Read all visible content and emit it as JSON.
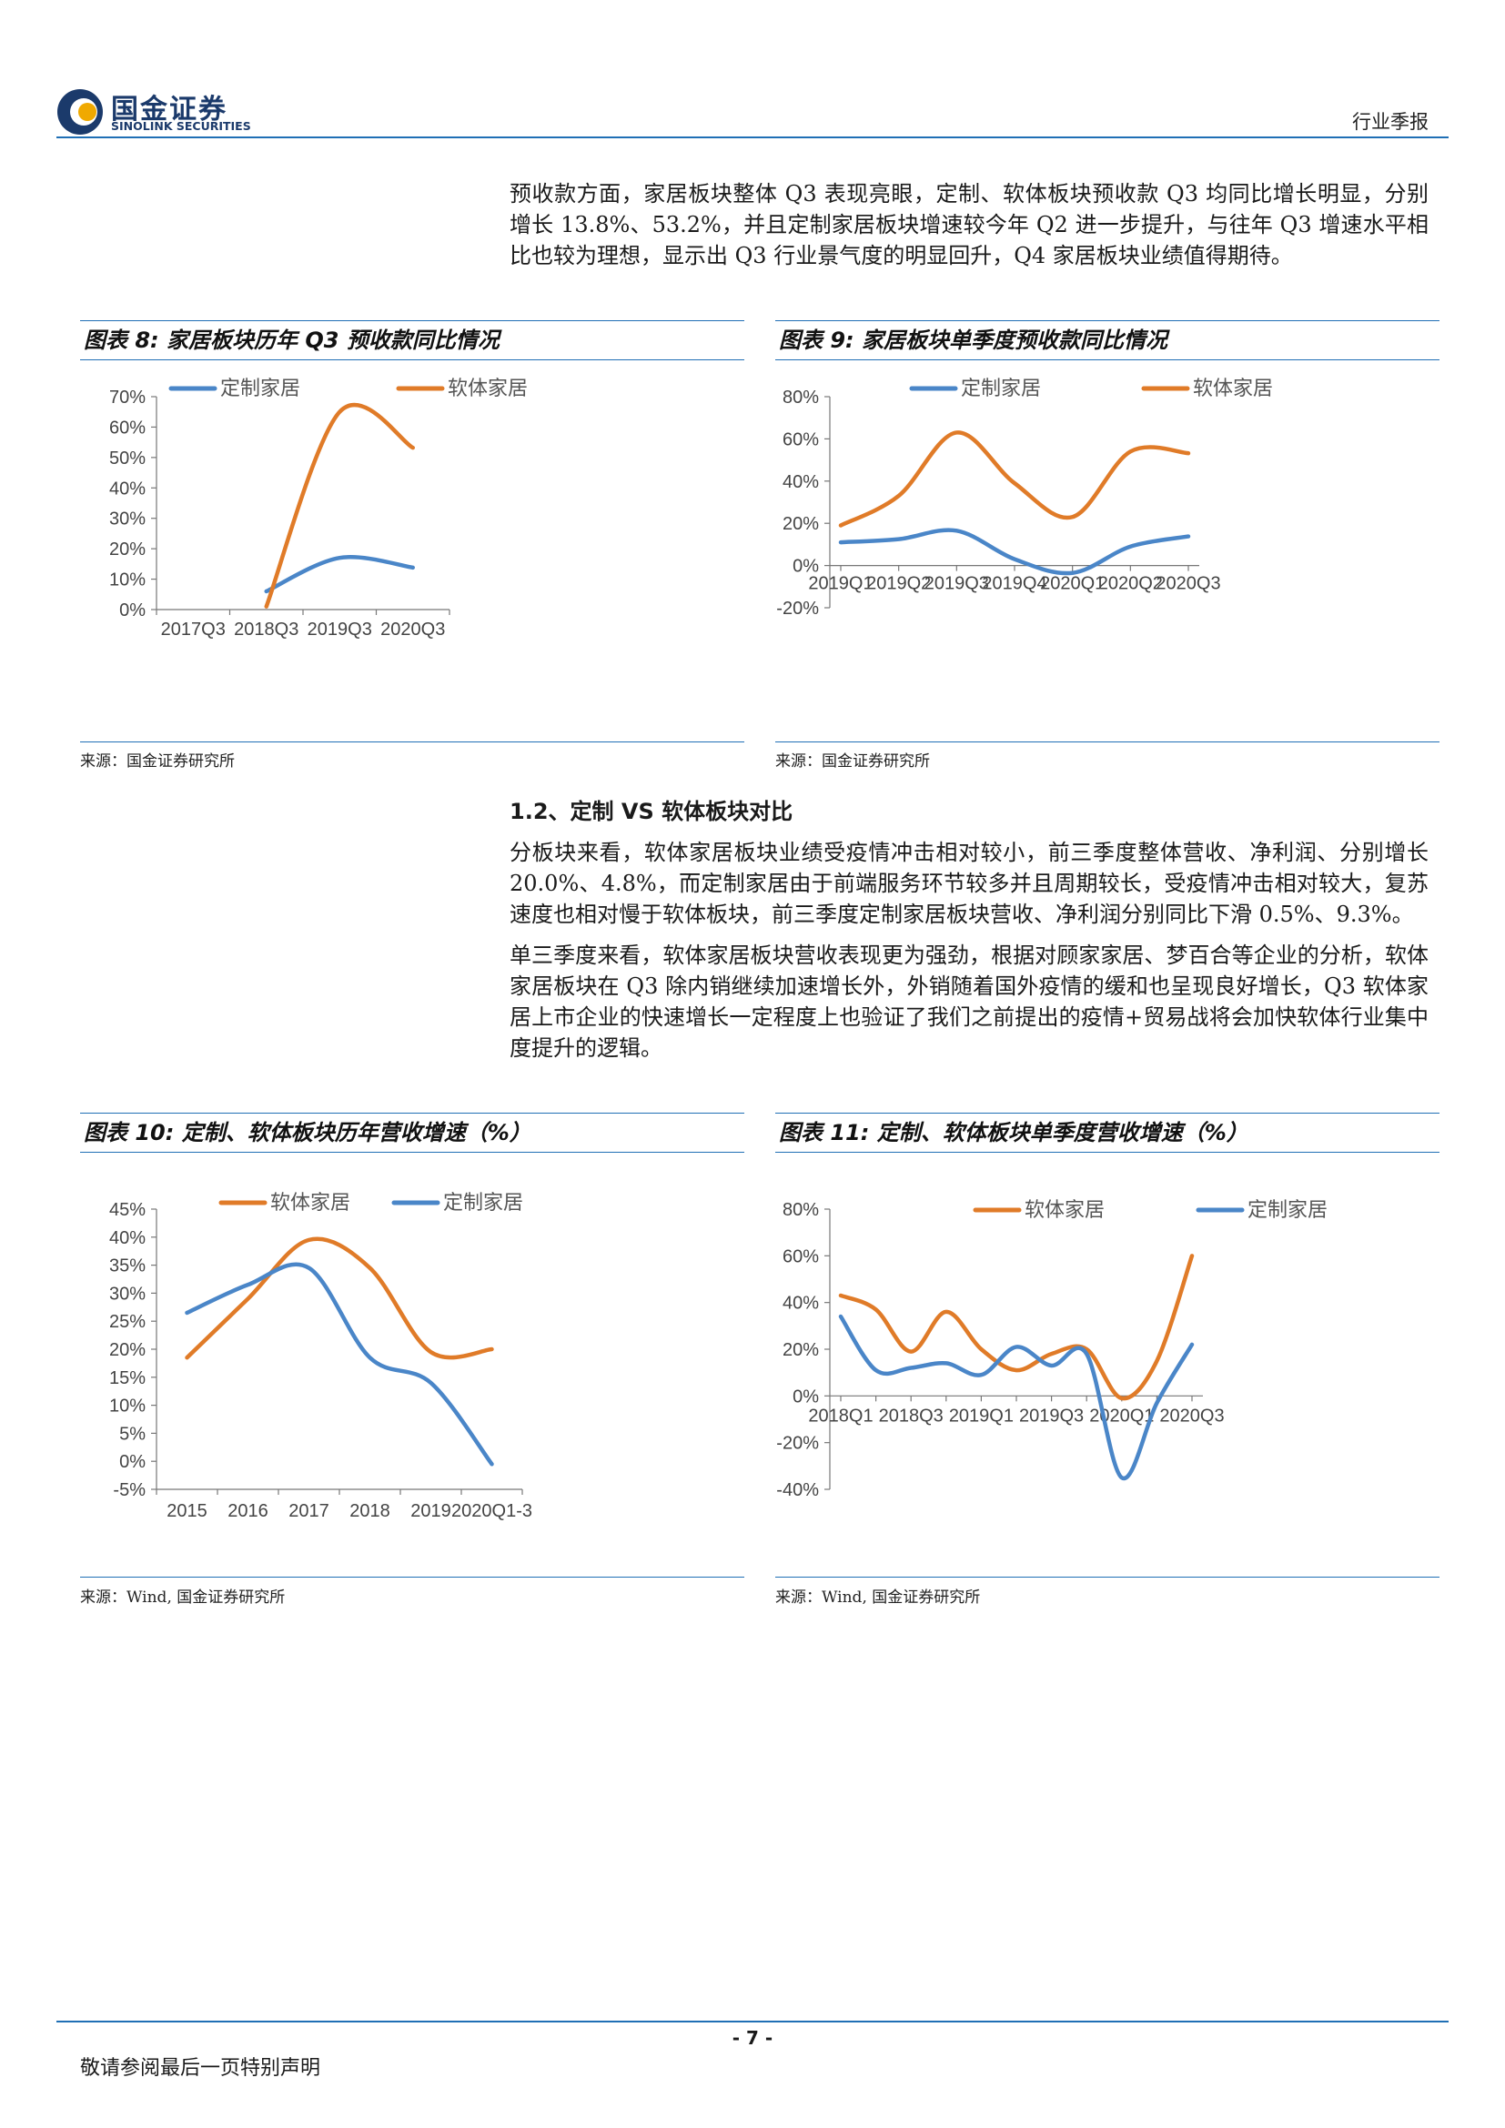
{
  "header": {
    "logo_cn": "国金证券",
    "logo_en": "SINOLINK SECURITIES",
    "report_type": "行业季报"
  },
  "paragraphs": {
    "p1": "预收款方面，家居板块整体 Q3 表现亮眼，定制、软体板块预收款 Q3 均同比增长明显，分别增长 13.8%、53.2%，并且定制家居板块增速较今年 Q2 进一步提升，与往年 Q3 增速水平相比也较为理想，显示出 Q3 行业景气度的明显回升，Q4 家居板块业绩值得期待。",
    "section_title": "1.2、定制 VS 软体板块对比",
    "p2": "分板块来看，软体家居板块业绩受疫情冲击相对较小，前三季度整体营收、净利润、分别增长 20.0%、4.8%，而定制家居由于前端服务环节较多并且周期较长，受疫情冲击相对较大，复苏速度也相对慢于软体板块，前三季度定制家居板块营收、净利润分别同比下滑 0.5%、9.3%。",
    "p3": "单三季度来看，软体家居板块营收表现更为强劲，根据对顾家家居、梦百合等企业的分析，软体家居板块在 Q3 除内销继续加速增长外，外销随着国外疫情的缓和也呈现良好增长，Q3 软体家居上市企业的快速增长一定程度上也验证了我们之前提出的疫情+贸易战将会加快软体行业集中度提升的逻辑。"
  },
  "figures": {
    "fig8": {
      "title": "图表 8:  家居板块历年 Q3 预收款同比情况",
      "source": "来源：国金证券研究所"
    },
    "fig9": {
      "title": "图表 9:  家居板块单季度预收款同比情况",
      "source": "来源：国金证券研究所"
    },
    "fig10": {
      "title": "图表 10:  定制、软体板块历年营收增速（%）",
      "source": "来源：Wind, 国金证券研究所"
    },
    "fig11": {
      "title": "图表 11:  定制、软体板块单季度营收增速（%）",
      "source": "来源：Wind, 国金证券研究所"
    }
  },
  "footer": {
    "page_number": "- 7 -",
    "disclaimer": "敬请参阅最后一页特别声明"
  },
  "colors": {
    "blue_series": "#4a86c8",
    "orange_series": "#e07b28",
    "rule": "#1f6fb5"
  },
  "chart_data": [
    {
      "id": "fig8",
      "type": "line",
      "categories": [
        "2017Q3",
        "2018Q3",
        "2019Q3",
        "2020Q3"
      ],
      "series": [
        {
          "name": "定制家居",
          "color": "#4a86c8",
          "values": [
            null,
            6,
            17,
            13.8
          ]
        },
        {
          "name": "软体家居",
          "color": "#e07b28",
          "values": [
            null,
            1,
            65,
            53.2
          ]
        }
      ],
      "yticks": [
        "0%",
        "10%",
        "20%",
        "30%",
        "40%",
        "50%",
        "60%",
        "70%"
      ],
      "ylim": [
        0,
        70
      ],
      "legend": "top"
    },
    {
      "id": "fig9",
      "type": "line",
      "categories": [
        "2019Q1",
        "2019Q2",
        "2019Q3",
        "2019Q4",
        "2020Q1",
        "2020Q2",
        "2020Q3"
      ],
      "series": [
        {
          "name": "定制家居",
          "color": "#4a86c8",
          "values": [
            11,
            12.5,
            16.5,
            3,
            -3.5,
            9,
            13.8
          ]
        },
        {
          "name": "软体家居",
          "color": "#e07b28",
          "values": [
            19,
            33,
            63,
            39,
            23,
            54,
            53.2
          ]
        }
      ],
      "yticks": [
        "-20%",
        "0%",
        "20%",
        "40%",
        "60%",
        "80%"
      ],
      "ylim": [
        -20,
        80
      ],
      "legend": "top"
    },
    {
      "id": "fig10",
      "type": "line",
      "categories": [
        "2015",
        "2016",
        "2017",
        "2018",
        "2019",
        "2020Q1-3"
      ],
      "series": [
        {
          "name": "软体家居",
          "color": "#e07b28",
          "values": [
            18.5,
            29,
            39.5,
            34.5,
            19.5,
            20.0
          ]
        },
        {
          "name": "定制家居",
          "color": "#4a86c8",
          "values": [
            26.5,
            31.5,
            34.5,
            18.5,
            14,
            -0.5
          ]
        }
      ],
      "yticks": [
        "-5%",
        "0%",
        "5%",
        "10%",
        "15%",
        "20%",
        "25%",
        "30%",
        "35%",
        "40%",
        "45%"
      ],
      "ylim": [
        -5,
        45
      ],
      "legend": "top"
    },
    {
      "id": "fig11",
      "type": "line",
      "categories": [
        "2018Q1",
        "2018Q2",
        "2018Q3",
        "2018Q4",
        "2019Q1",
        "2019Q2",
        "2019Q3",
        "2019Q4",
        "2020Q1",
        "2020Q2",
        "2020Q3"
      ],
      "xticklabels": [
        "2018Q1",
        "",
        "2018Q3",
        "",
        "2019Q1",
        "",
        "2019Q3",
        "",
        "2020Q1",
        "",
        "2020Q3"
      ],
      "series": [
        {
          "name": "软体家居",
          "color": "#e07b28",
          "values": [
            43,
            37,
            19,
            36,
            20,
            11,
            18,
            20,
            -1,
            15,
            60
          ]
        },
        {
          "name": "定制家居",
          "color": "#4a86c8",
          "values": [
            34,
            11,
            12,
            14,
            9,
            21,
            13,
            18,
            -35,
            -3,
            22
          ]
        }
      ],
      "yticks": [
        "-40%",
        "-20%",
        "0%",
        "20%",
        "40%",
        "60%",
        "80%"
      ],
      "ylim": [
        -40,
        80
      ],
      "legend": "top"
    }
  ]
}
